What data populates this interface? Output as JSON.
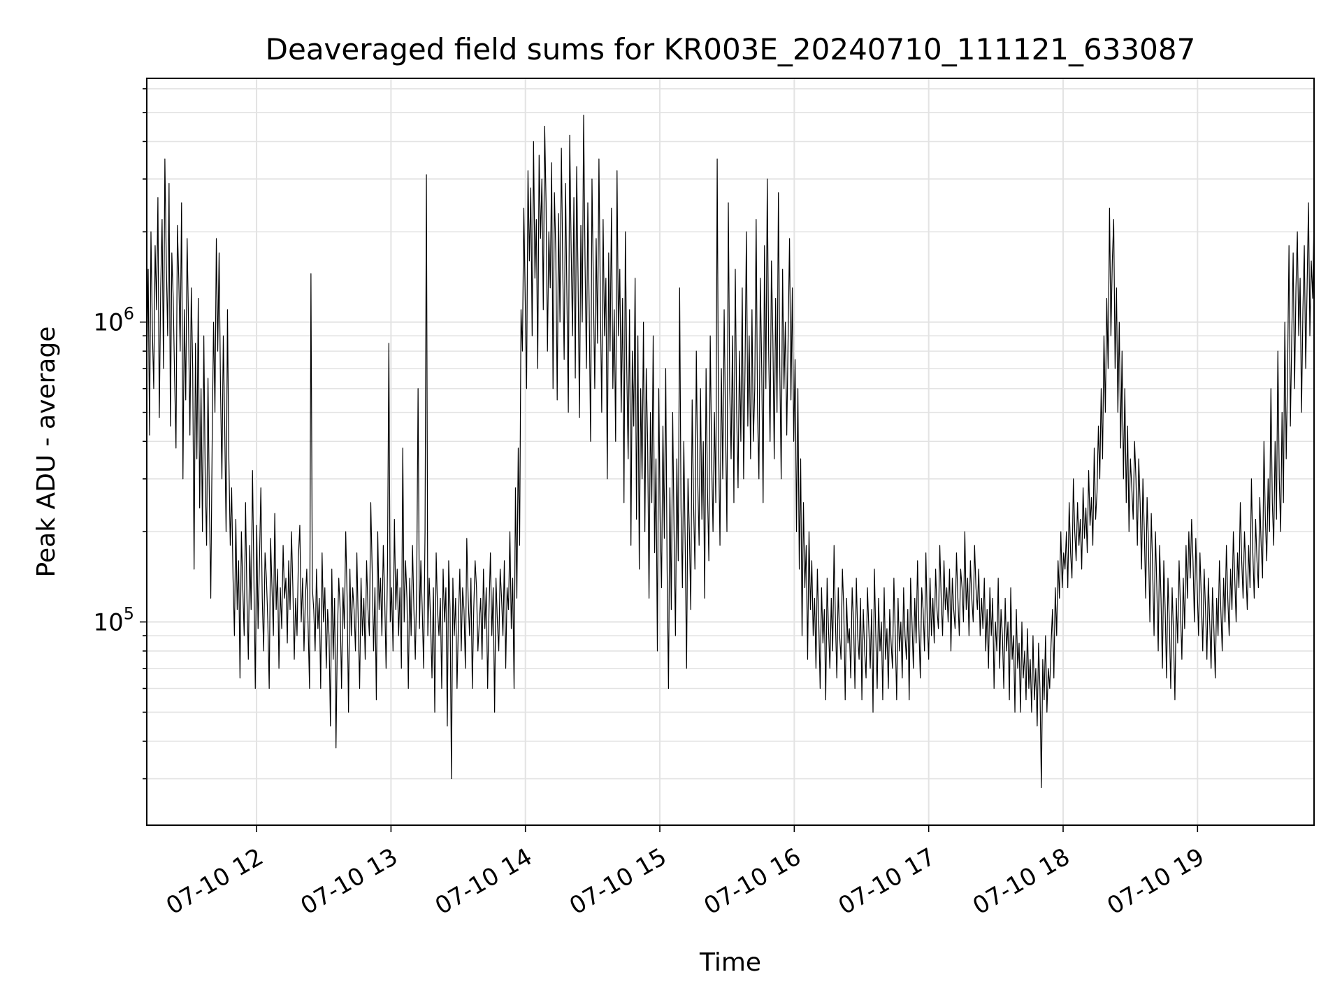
{
  "chart_data": {
    "type": "line",
    "title": "Deaveraged field sums for KR003E_20240710_111121_633087",
    "xlabel": "Time",
    "ylabel": "Peak ADU - average",
    "yscale": "log",
    "ylim": [
      21000,
      6500000
    ],
    "xlim": [
      "2024-07-10 11:11",
      "2024-07-10 19:52"
    ],
    "x_ticks": [
      "07-10 12",
      "07-10 13",
      "07-10 14",
      "07-10 15",
      "07-10 16",
      "07-10 17",
      "07-10 18",
      "07-10 19"
    ],
    "y_ticks": [
      "10^5",
      "10^6"
    ],
    "grid": true,
    "line_color": "#000000",
    "sample_interval_seconds": 60,
    "series": [
      {
        "values": [
          700000,
          1500000,
          420000,
          2000000,
          950000,
          600000,
          1800000,
          1100000,
          2600000,
          480000,
          1300000,
          2200000,
          700000,
          3500000,
          1600000,
          900000,
          2900000,
          450000,
          1700000,
          1200000,
          650000,
          380000,
          2100000,
          1400000,
          800000,
          2500000,
          300000,
          1100000,
          550000,
          1900000,
          1000000,
          420000,
          1300000,
          700000,
          150000,
          850000,
          350000,
          1200000,
          240000,
          600000,
          200000,
          900000,
          300000,
          180000,
          650000,
          250000,
          120000,
          400000,
          1000000,
          500000,
          1900000,
          800000,
          1700000,
          600000,
          300000,
          900000,
          450000,
          200000,
          1100000,
          350000,
          180000,
          280000,
          140000,
          90000,
          220000,
          110000,
          160000,
          65000,
          200000,
          130000,
          90000,
          250000,
          120000,
          75000,
          180000,
          110000,
          320000,
          140000,
          60000,
          210000,
          95000,
          160000,
          280000,
          120000,
          80000,
          170000,
          140000,
          100000,
          60000,
          190000,
          130000,
          90000,
          230000,
          110000,
          150000,
          70000,
          130000,
          95000,
          180000,
          120000,
          140000,
          85000,
          160000,
          110000,
          200000,
          130000,
          75000,
          120000,
          90000,
          165000,
          210000,
          100000,
          140000,
          80000,
          120000,
          150000,
          95000,
          60000,
          1450000,
          130000,
          110000,
          80000,
          150000,
          95000,
          120000,
          60000,
          170000,
          100000,
          130000,
          70000,
          110000,
          90000,
          45000,
          150000,
          75000,
          120000,
          38000,
          90000,
          140000,
          110000,
          60000,
          130000,
          95000,
          200000,
          120000,
          50000,
          150000,
          90000,
          130000,
          110000,
          80000,
          170000,
          100000,
          60000,
          140000,
          90000,
          120000,
          75000,
          160000,
          110000,
          90000,
          250000,
          150000,
          80000,
          130000,
          55000,
          200000,
          110000,
          140000,
          90000,
          180000,
          120000,
          70000,
          150000,
          850000,
          100000,
          130000,
          80000,
          220000,
          110000,
          150000,
          90000,
          130000,
          70000,
          380000,
          100000,
          160000,
          120000,
          60000,
          140000,
          90000,
          180000,
          110000,
          75000,
          130000,
          600000,
          95000,
          160000,
          110000,
          70000,
          200000,
          3100000,
          90000,
          140000,
          100000,
          65000,
          130000,
          50000,
          170000,
          110000,
          90000,
          120000,
          60000,
          150000,
          100000,
          130000,
          45000,
          160000,
          110000,
          30000,
          140000,
          90000,
          120000,
          60000,
          100000,
          150000,
          80000,
          130000,
          110000,
          70000,
          190000,
          120000,
          90000,
          140000,
          60000,
          110000,
          160000,
          130000,
          80000,
          100000,
          120000,
          75000,
          150000,
          95000,
          130000,
          60000,
          110000,
          170000,
          90000,
          130000,
          50000,
          140000,
          100000,
          80000,
          150000,
          120000,
          90000,
          160000,
          70000,
          130000,
          110000,
          200000,
          95000,
          140000,
          60000,
          280000,
          120000,
          380000,
          180000,
          1100000,
          800000,
          2400000,
          1200000,
          600000,
          3200000,
          1600000,
          2800000,
          900000,
          4000000,
          1400000,
          2200000,
          700000,
          3600000,
          1900000,
          3000000,
          1100000,
          4500000,
          2500000,
          800000,
          2000000,
          1300000,
          3400000,
          600000,
          2700000,
          1700000,
          550000,
          2300000,
          1000000,
          3800000,
          1500000,
          750000,
          2900000,
          1200000,
          500000,
          4200000,
          1800000,
          900000,
          2600000,
          650000,
          3300000,
          1400000,
          480000,
          2100000,
          1000000,
          4900000,
          1600000,
          700000,
          2500000,
          1100000,
          400000,
          3000000,
          1300000,
          600000,
          1900000,
          850000,
          3500000,
          1200000,
          500000,
          2200000,
          900000,
          1400000,
          300000,
          1700000,
          800000,
          2400000,
          600000,
          1100000,
          400000,
          3200000,
          900000,
          1500000,
          500000,
          1200000,
          250000,
          2000000,
          700000,
          350000,
          1100000,
          180000,
          800000,
          450000,
          1400000,
          220000,
          900000,
          150000,
          600000,
          300000,
          1000000,
          200000,
          700000,
          400000,
          120000,
          500000,
          250000,
          900000,
          170000,
          350000,
          80000,
          600000,
          220000,
          130000,
          450000,
          190000,
          700000,
          150000,
          60000,
          280000,
          110000,
          500000,
          200000,
          90000,
          350000,
          160000,
          1300000,
          240000,
          130000,
          400000,
          180000,
          70000,
          300000,
          200000,
          110000,
          550000,
          250000,
          150000,
          800000,
          300000,
          180000,
          600000,
          220000,
          400000,
          120000,
          700000,
          280000,
          160000,
          900000,
          350000,
          200000,
          500000,
          250000,
          3500000,
          400000,
          180000,
          700000,
          300000,
          1100000,
          450000,
          200000,
          2500000,
          600000,
          350000,
          900000,
          250000,
          1500000,
          500000,
          280000,
          800000,
          400000,
          1300000,
          300000,
          700000,
          2000000,
          450000,
          900000,
          350000,
          1100000,
          400000,
          600000,
          2200000,
          500000,
          300000,
          1400000,
          700000,
          250000,
          1800000,
          600000,
          3000000,
          800000,
          400000,
          1600000,
          900000,
          350000,
          1200000,
          500000,
          2700000,
          700000,
          300000,
          1500000,
          600000,
          1000000,
          420000,
          900000,
          1900000,
          550000,
          1300000,
          400000,
          750000,
          200000,
          600000,
          150000,
          350000,
          90000,
          250000,
          130000,
          180000,
          75000,
          200000,
          110000,
          160000,
          90000,
          120000,
          70000,
          150000,
          100000,
          60000,
          130000,
          85000,
          110000,
          55000,
          140000,
          95000,
          70000,
          120000,
          80000,
          180000,
          100000,
          65000,
          130000,
          90000,
          75000,
          150000,
          110000,
          55000,
          120000,
          85000,
          95000,
          65000,
          130000,
          100000,
          60000,
          140000,
          90000,
          75000,
          120000,
          55000,
          110000,
          80000,
          65000,
          130000,
          95000,
          70000,
          110000,
          50000,
          150000,
          90000,
          60000,
          120000,
          80000,
          100000,
          55000,
          130000,
          75000,
          95000,
          60000,
          110000,
          85000,
          70000,
          140000,
          90000,
          55000,
          120000,
          80000,
          100000,
          65000,
          130000,
          90000,
          75000,
          110000,
          55000,
          140000,
          100000,
          70000,
          120000,
          85000,
          160000,
          95000,
          65000,
          130000,
          110000,
          80000,
          170000,
          100000,
          75000,
          140000,
          90000,
          120000,
          85000,
          150000,
          110000,
          95000,
          180000,
          120000,
          90000,
          160000,
          110000,
          130000,
          100000,
          150000,
          80000,
          140000,
          110000,
          95000,
          170000,
          120000,
          90000,
          150000,
          130000,
          100000,
          200000,
          110000,
          140000,
          90000,
          160000,
          120000,
          100000,
          180000,
          130000,
          110000,
          150000,
          90000,
          120000,
          95000,
          140000,
          80000,
          110000,
          70000,
          130000,
          90000,
          120000,
          60000,
          100000,
          80000,
          140000,
          70000,
          110000,
          90000,
          60000,
          120000,
          80000,
          100000,
          55000,
          130000,
          75000,
          90000,
          50000,
          110000,
          70000,
          85000,
          50000,
          100000,
          65000,
          80000,
          55000,
          95000,
          60000,
          75000,
          50000,
          90000,
          55000,
          70000,
          45000,
          85000,
          60000,
          28000,
          75000,
          55000,
          90000,
          50000,
          70000,
          60000,
          85000,
          110000,
          65000,
          130000,
          90000,
          160000,
          120000,
          200000,
          130000,
          170000,
          150000,
          200000,
          130000,
          250000,
          170000,
          140000,
          300000,
          200000,
          160000,
          250000,
          180000,
          220000,
          150000,
          280000,
          190000,
          240000,
          170000,
          320000,
          210000,
          260000,
          180000,
          380000,
          220000,
          270000,
          450000,
          300000,
          600000,
          350000,
          900000,
          500000,
          1200000,
          700000,
          2400000,
          900000,
          1600000,
          2200000,
          700000,
          1300000,
          500000,
          1000000,
          380000,
          800000,
          300000,
          600000,
          250000,
          450000,
          200000,
          350000,
          280000,
          220000,
          400000,
          300000,
          180000,
          350000,
          250000,
          150000,
          300000,
          200000,
          120000,
          260000,
          180000,
          100000,
          230000,
          150000,
          90000,
          200000,
          130000,
          80000,
          180000,
          120000,
          70000,
          160000,
          110000,
          65000,
          140000,
          100000,
          60000,
          130000,
          90000,
          55000,
          120000,
          85000,
          160000,
          110000,
          75000,
          140000,
          95000,
          180000,
          120000,
          200000,
          140000,
          220000,
          160000,
          100000,
          190000,
          130000,
          90000,
          170000,
          120000,
          80000,
          150000,
          110000,
          75000,
          140000,
          100000,
          70000,
          130000,
          95000,
          65000,
          120000,
          90000,
          160000,
          110000,
          80000,
          140000,
          100000,
          180000,
          120000,
          90000,
          150000,
          110000,
          200000,
          140000,
          100000,
          170000,
          130000,
          250000,
          160000,
          120000,
          200000,
          150000,
          110000,
          180000,
          130000,
          300000,
          170000,
          120000,
          220000,
          160000,
          130000,
          260000,
          180000,
          140000,
          400000,
          220000,
          160000,
          300000,
          200000,
          600000,
          250000,
          180000,
          400000,
          220000,
          800000,
          300000,
          200000,
          500000,
          250000,
          1000000,
          350000,
          700000,
          1800000,
          450000,
          900000,
          1700000,
          600000,
          1300000,
          2000000,
          900000,
          1400000,
          500000,
          1100000,
          1800000,
          700000,
          1300000,
          2500000,
          900000,
          1600000,
          1200000,
          2200000
        ]
      }
    ]
  }
}
